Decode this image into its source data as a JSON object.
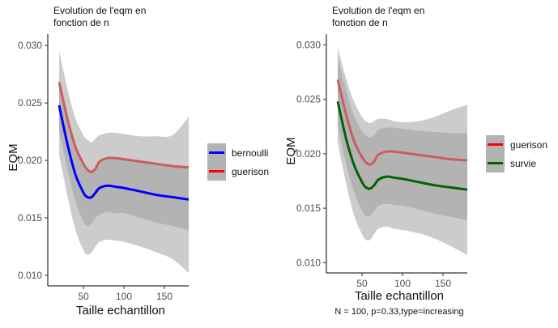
{
  "caption": "N = 100, p=0.33,type=increasing",
  "chart_data": [
    {
      "type": "line",
      "title": "Evolution de l'eqm en\nfonction de n",
      "xlabel": "Taille echantillon",
      "ylabel": "EQM",
      "xlim": [
        12,
        180
      ],
      "ylim": [
        0.0095,
        0.031
      ],
      "xticks": [
        50,
        100,
        150
      ],
      "yticks": [
        0.01,
        0.015,
        0.02,
        0.025,
        0.03
      ],
      "ytick_labels": [
        "0.010",
        "0.015",
        "0.020",
        "0.025",
        "0.030"
      ],
      "grid": false,
      "legend": "right",
      "colors": {
        "band_outer": "#cccccc",
        "band_inner": "#b3b3b3",
        "bernoulli": "#0000ff",
        "guerison": "#cd5c5c"
      },
      "series": [
        {
          "name": "bernoulli",
          "color": "#0000ff",
          "x": [
            20,
            30,
            40,
            50,
            55,
            60,
            65,
            70,
            80,
            90,
            100,
            120,
            140,
            160,
            180
          ],
          "y": [
            0.0248,
            0.0215,
            0.0188,
            0.0172,
            0.0168,
            0.0168,
            0.0172,
            0.0176,
            0.0178,
            0.0177,
            0.0176,
            0.0173,
            0.017,
            0.0168,
            0.0166
          ],
          "band_inner": {
            "upper": [
              0.027,
              0.0237,
              0.0212,
              0.0197,
              0.0193,
              0.0191,
              0.0194,
              0.0198,
              0.02,
              0.0199,
              0.0198,
              0.0196,
              0.0194,
              0.0193,
              0.0193
            ],
            "lower": [
              0.0226,
              0.0193,
              0.0165,
              0.0147,
              0.0143,
              0.0145,
              0.015,
              0.0153,
              0.0155,
              0.0154,
              0.0154,
              0.015,
              0.0146,
              0.0143,
              0.0139
            ]
          },
          "band_outer": {
            "upper": [
              0.0295,
              0.0263,
              0.0237,
              0.0222,
              0.0218,
              0.0216,
              0.0219,
              0.0222,
              0.0224,
              0.0224,
              0.0223,
              0.0221,
              0.0221,
              0.0222,
              0.0238
            ],
            "lower": [
              0.0205,
              0.017,
              0.014,
              0.0122,
              0.0118,
              0.012,
              0.0125,
              0.0129,
              0.0131,
              0.013,
              0.0129,
              0.0125,
              0.012,
              0.0114,
              0.0102
            ]
          }
        },
        {
          "name": "guerison",
          "color": "#cd5c5c",
          "x": [
            20,
            30,
            40,
            50,
            55,
            60,
            65,
            70,
            80,
            90,
            100,
            120,
            140,
            160,
            180
          ],
          "y": [
            0.0268,
            0.0237,
            0.0212,
            0.0197,
            0.0192,
            0.019,
            0.0193,
            0.0199,
            0.0202,
            0.0202,
            0.0201,
            0.0199,
            0.0197,
            0.0195,
            0.0194
          ],
          "band_inner": {
            "upper": [
              0.0268,
              0.0237,
              0.0212,
              0.0197,
              0.0192,
              0.019,
              0.0193,
              0.0199,
              0.0202,
              0.0202,
              0.0201,
              0.0199,
              0.0197,
              0.0195,
              0.0194
            ],
            "lower": [
              0.0268,
              0.0237,
              0.0212,
              0.0197,
              0.0192,
              0.019,
              0.0193,
              0.0199,
              0.0202,
              0.0202,
              0.0201,
              0.0199,
              0.0197,
              0.0195,
              0.0194
            ]
          },
          "band_outer": {
            "upper": [
              0.0268,
              0.0237,
              0.0212,
              0.0197,
              0.0192,
              0.019,
              0.0193,
              0.0199,
              0.0202,
              0.0202,
              0.0201,
              0.0199,
              0.0197,
              0.0195,
              0.0194
            ],
            "lower": [
              0.0268,
              0.0237,
              0.0212,
              0.0197,
              0.0192,
              0.019,
              0.0193,
              0.0199,
              0.0202,
              0.0202,
              0.0201,
              0.0199,
              0.0197,
              0.0195,
              0.0194
            ]
          }
        }
      ]
    },
    {
      "type": "line",
      "title": "Evolution de l'eqm en\nfonction de n",
      "xlabel": "Taille echantillon",
      "ylabel": "EQM",
      "xlim": [
        12,
        180
      ],
      "ylim": [
        0.0095,
        0.031
      ],
      "xticks": [
        50,
        100,
        150
      ],
      "yticks": [
        0.01,
        0.015,
        0.02,
        0.025,
        0.03
      ],
      "ytick_labels": [
        "0.010",
        "0.015",
        "0.020",
        "0.025",
        "0.030"
      ],
      "grid": false,
      "legend": "right",
      "colors": {
        "band_outer": "#cccccc",
        "band_inner": "#b3b3b3",
        "guerison": "#cd5c5c",
        "survie": "#006400"
      },
      "series": [
        {
          "name": "guerison",
          "color": "#cd5c5c",
          "x": [
            20,
            30,
            40,
            50,
            55,
            60,
            65,
            70,
            80,
            90,
            100,
            120,
            140,
            160,
            180
          ],
          "y": [
            0.0268,
            0.0237,
            0.0212,
            0.0197,
            0.0192,
            0.019,
            0.0193,
            0.0199,
            0.0202,
            0.0202,
            0.0201,
            0.0199,
            0.0197,
            0.0195,
            0.0194
          ],
          "band_inner": {
            "upper": [
              0.0288,
              0.026,
              0.0235,
              0.0221,
              0.0217,
              0.0215,
              0.0217,
              0.0222,
              0.0224,
              0.0224,
              0.0223,
              0.0221,
              0.022,
              0.0219,
              0.0219
            ],
            "lower": [
              0.0248,
              0.0214,
              0.0189,
              0.0173,
              0.0168,
              0.0166,
              0.0169,
              0.0175,
              0.018,
              0.018,
              0.0179,
              0.0177,
              0.0174,
              0.0171,
              0.0169
            ]
          },
          "band_outer": {
            "upper": [
              0.0298,
              0.027,
              0.0248,
              0.0234,
              0.023,
              0.0228,
              0.023,
              0.0232,
              0.0232,
              0.023,
              0.0229,
              0.023,
              0.0234,
              0.024,
              0.0245
            ]
          }
        },
        {
          "name": "survie",
          "color": "#006400",
          "x": [
            20,
            30,
            40,
            50,
            55,
            60,
            65,
            70,
            80,
            90,
            100,
            120,
            140,
            160,
            180
          ],
          "y": [
            0.0248,
            0.0215,
            0.019,
            0.0174,
            0.0169,
            0.0168,
            0.0171,
            0.0176,
            0.0179,
            0.0178,
            0.0177,
            0.0174,
            0.0171,
            0.0169,
            0.0167
          ],
          "band_inner": {
            "upper": [
              0.0262,
              0.0229,
              0.0204,
              0.0188,
              0.0183,
              0.0182,
              0.0185,
              0.019,
              0.0193,
              0.0192,
              0.0191,
              0.0188,
              0.0185,
              0.0183,
              0.0181
            ],
            "lower": [
              0.0226,
              0.0192,
              0.0165,
              0.0148,
              0.0143,
              0.0143,
              0.0147,
              0.0152,
              0.0154,
              0.0153,
              0.0152,
              0.0149,
              0.0145,
              0.0142,
              0.0139
            ]
          },
          "band_outer": {
            "lower": [
              0.021,
              0.0174,
              0.0144,
              0.0126,
              0.0121,
              0.0121,
              0.0126,
              0.0131,
              0.0133,
              0.0131,
              0.013,
              0.0127,
              0.0122,
              0.0115,
              0.0107
            ]
          }
        }
      ]
    }
  ]
}
